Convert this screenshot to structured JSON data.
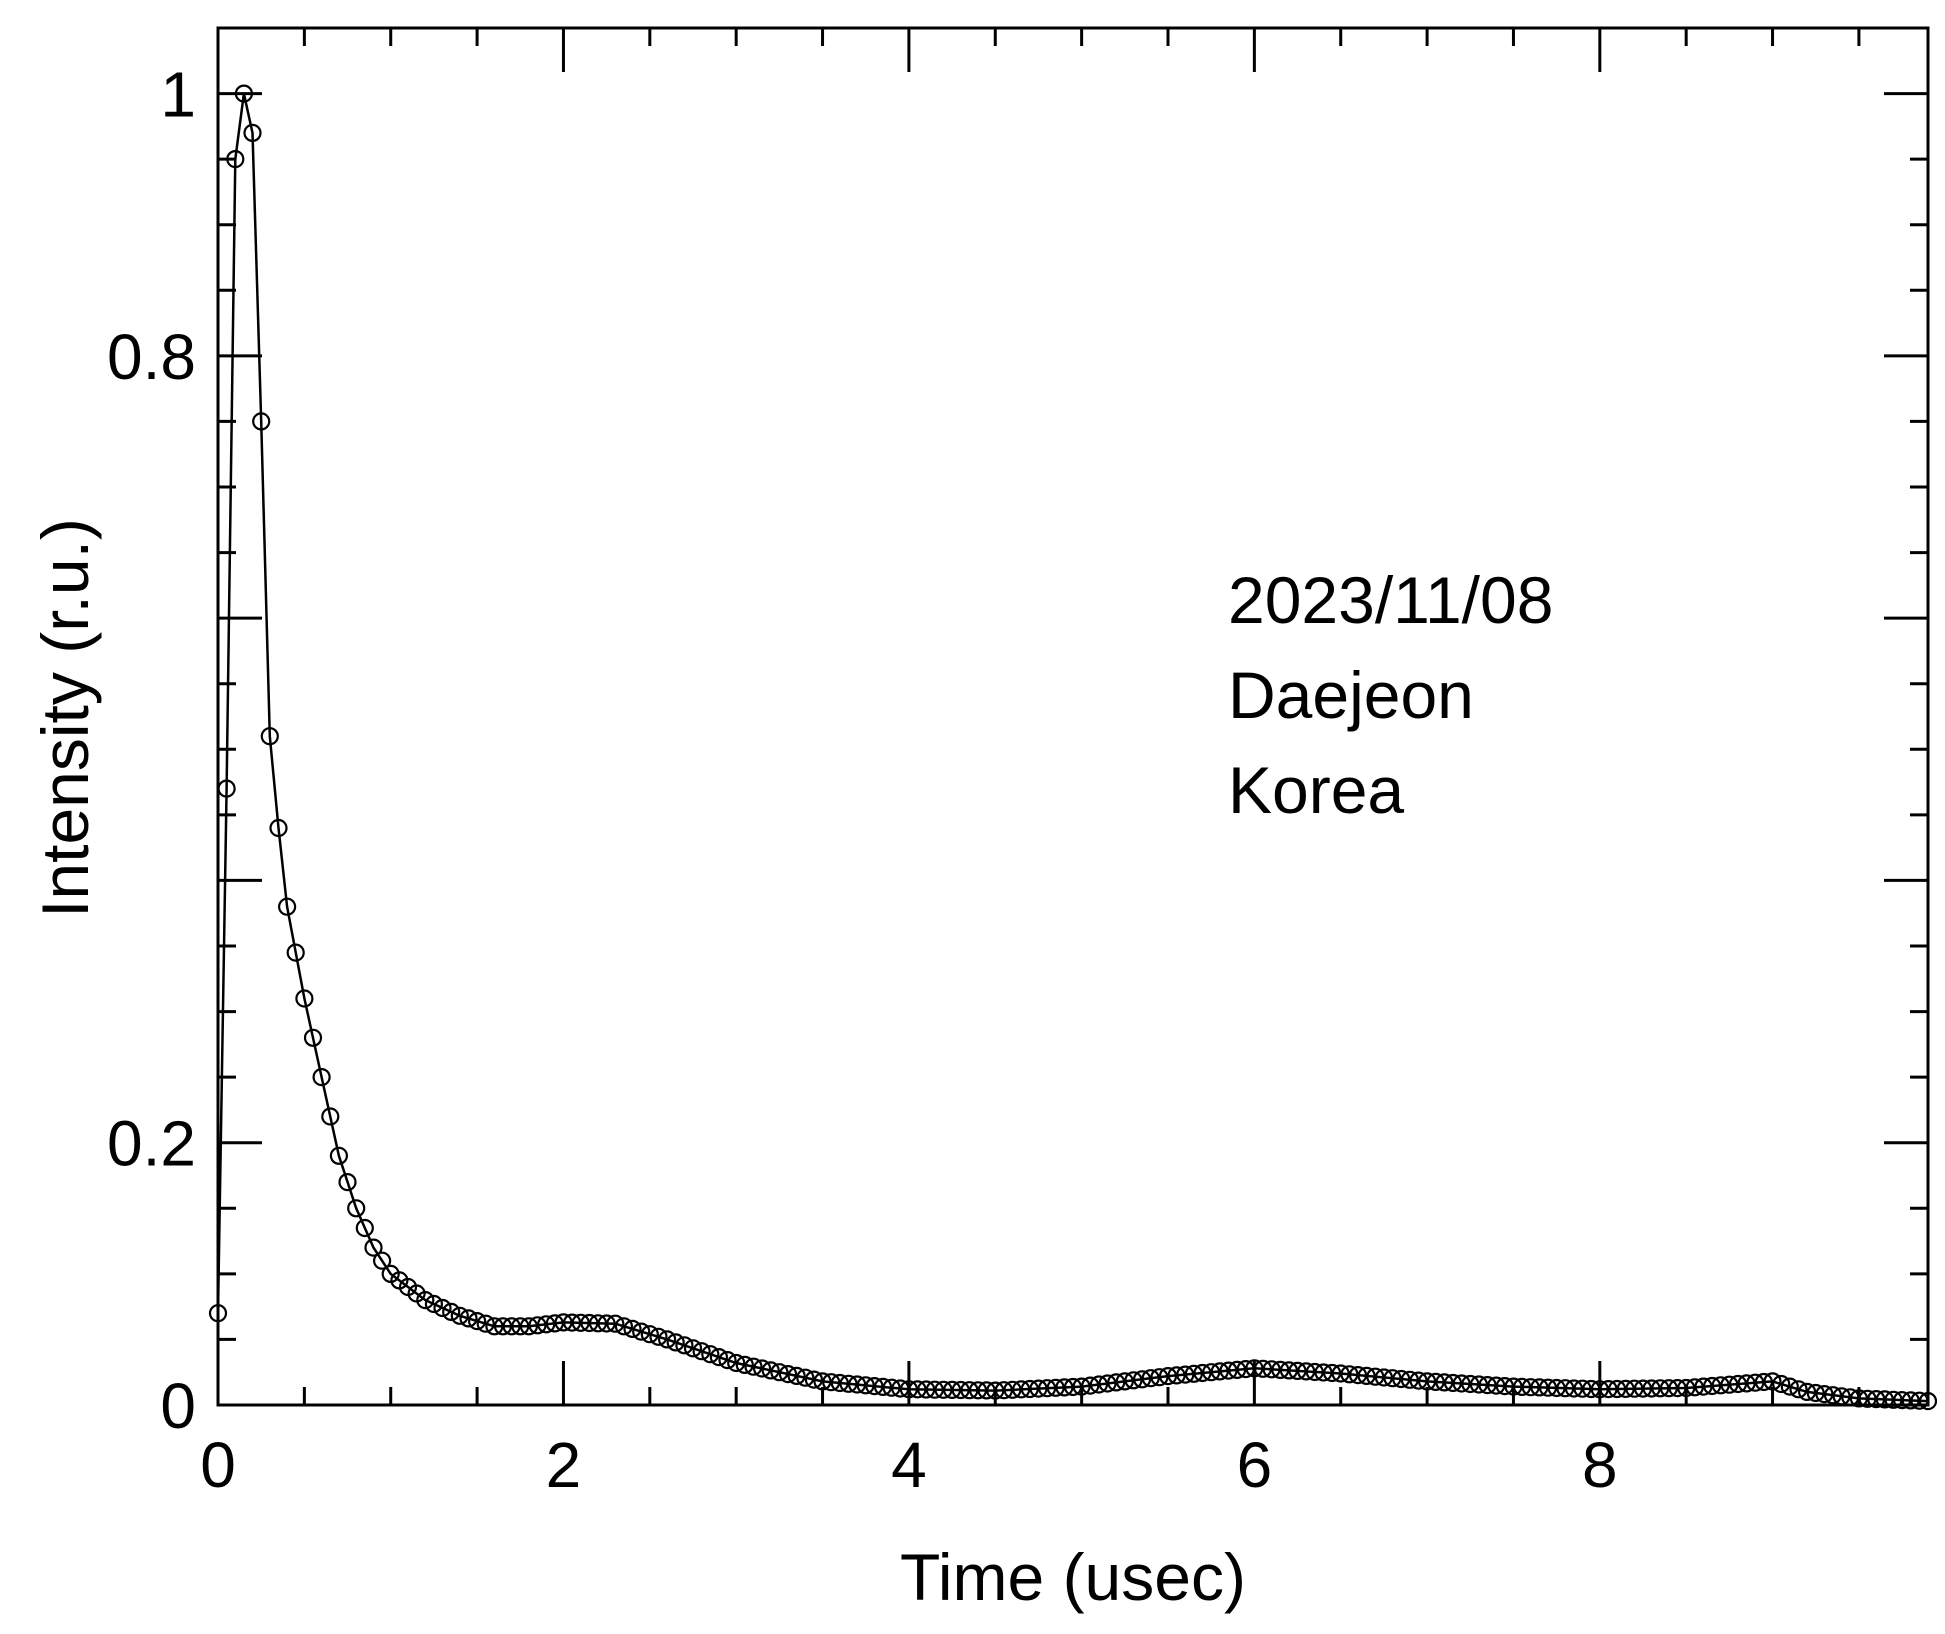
{
  "chart_data": {
    "type": "line",
    "xlabel": "Time (usec)",
    "ylabel": "Intensity (r.u.)",
    "xlim": [
      0,
      9.9
    ],
    "ylim": [
      0,
      1.05
    ],
    "x_ticks": [
      0,
      2,
      4,
      6,
      8
    ],
    "x_tick_labels": [
      "0",
      "2",
      "4",
      "6",
      "8"
    ],
    "y_ticks": [
      0,
      0.2,
      0.8,
      1
    ],
    "y_tick_labels": [
      "0",
      "0.2",
      "0.8",
      "1"
    ],
    "grid": false,
    "marker": "open-circle",
    "annotation": [
      "2023/11/08",
      "Daejeon",
      "Korea"
    ],
    "series": [
      {
        "x": [
          0.0,
          0.05,
          0.1,
          0.15,
          0.2,
          0.25,
          0.3,
          0.35,
          0.4,
          0.5,
          0.6,
          0.7,
          0.8,
          0.9,
          1.0,
          1.2,
          1.4,
          1.6,
          1.8,
          2.0,
          2.3,
          2.6,
          3.0,
          3.5,
          4.0,
          4.5,
          5.0,
          5.5,
          6.0,
          6.5,
          7.0,
          7.5,
          8.0,
          8.5,
          9.0,
          9.2,
          9.5,
          9.9
        ],
        "y": [
          0.07,
          0.47,
          0.95,
          1.0,
          0.97,
          0.75,
          0.51,
          0.44,
          0.38,
          0.31,
          0.25,
          0.19,
          0.15,
          0.12,
          0.1,
          0.08,
          0.068,
          0.06,
          0.06,
          0.063,
          0.062,
          0.05,
          0.032,
          0.018,
          0.012,
          0.011,
          0.014,
          0.022,
          0.028,
          0.024,
          0.018,
          0.014,
          0.012,
          0.013,
          0.018,
          0.01,
          0.005,
          0.003
        ]
      }
    ]
  }
}
